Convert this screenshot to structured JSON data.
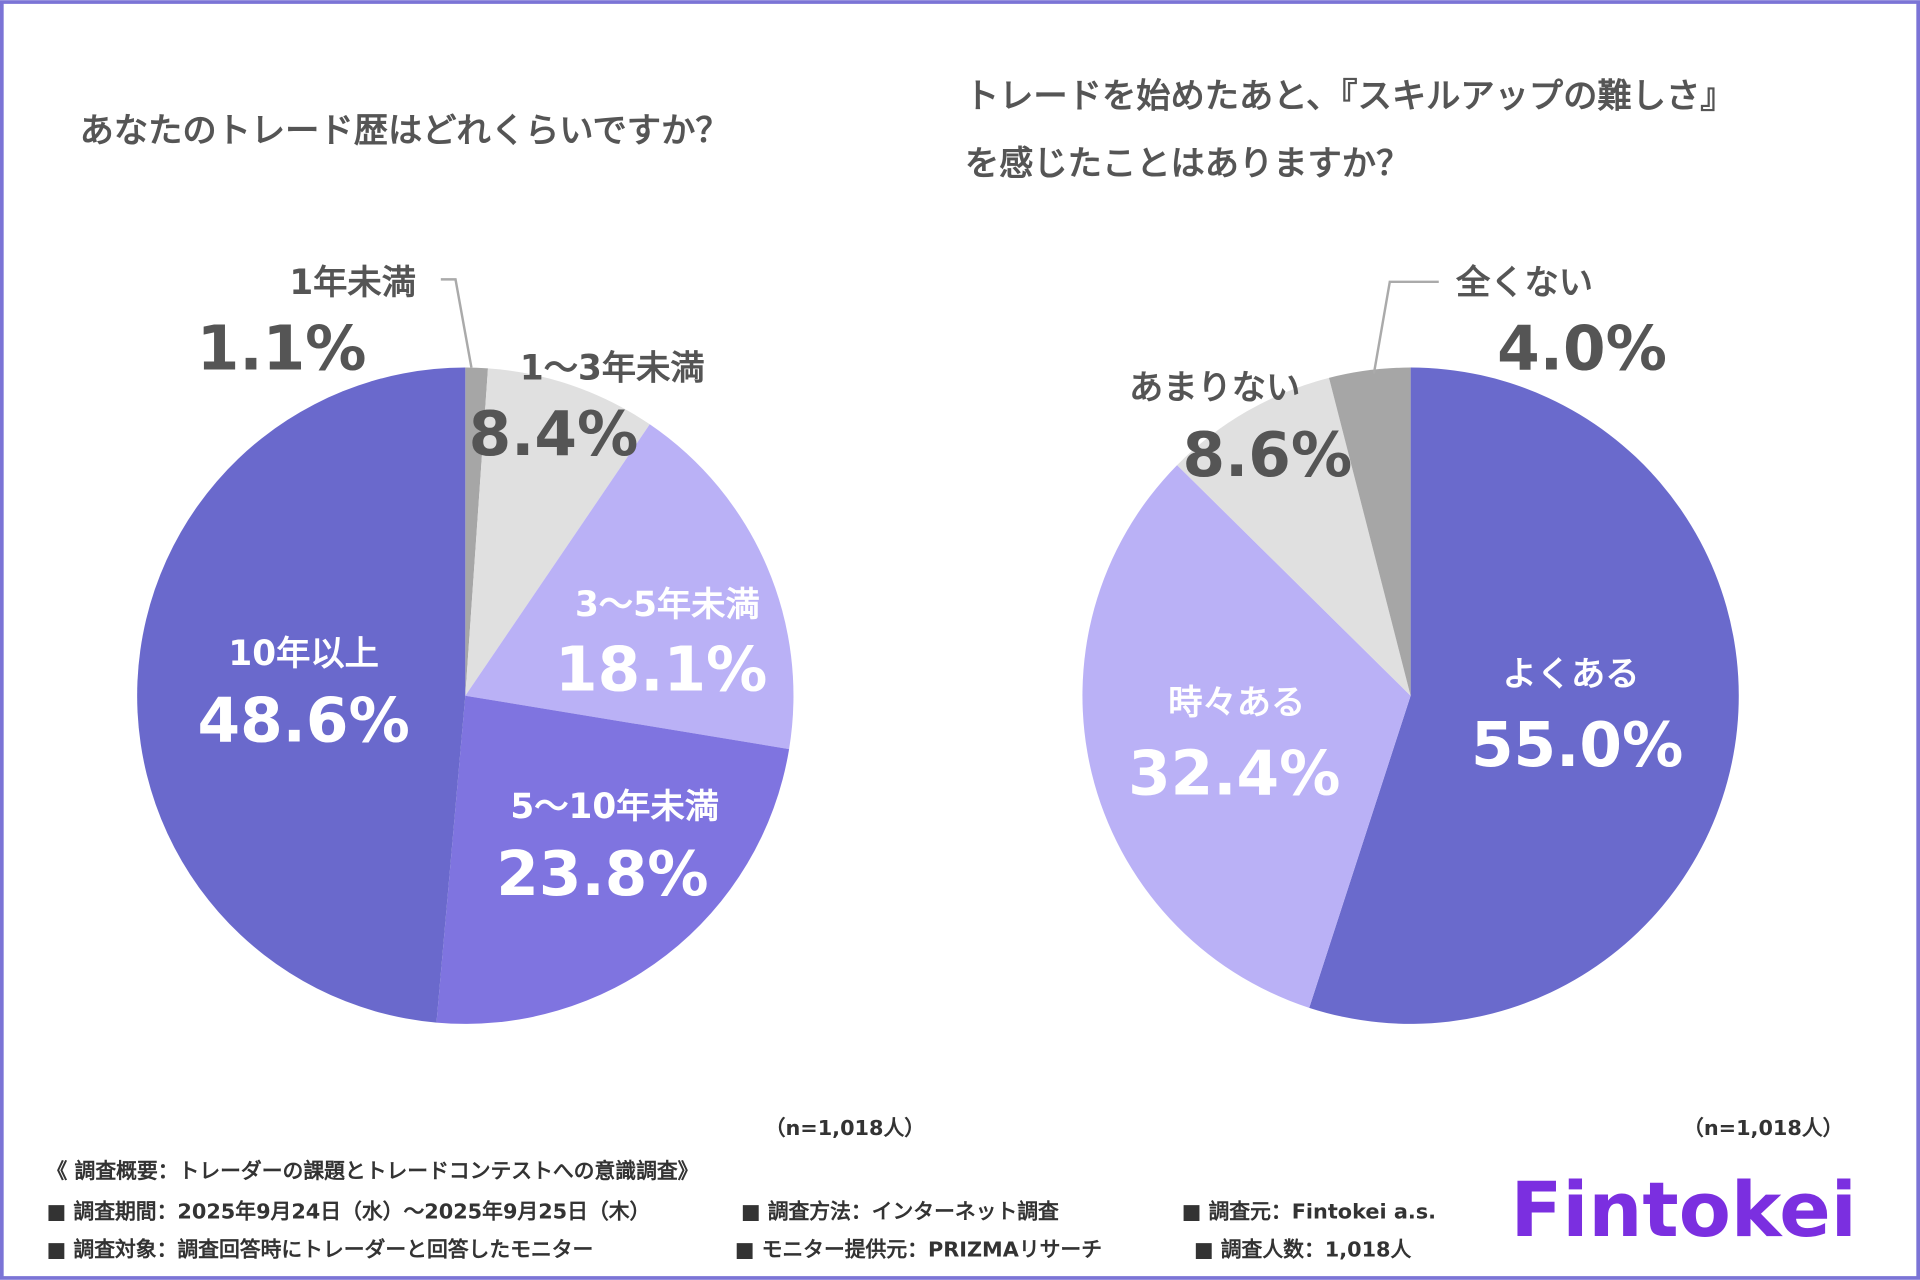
{
  "chart_data": [
    {
      "type": "pie",
      "title": [
        "あなたのトレード歴はどれくらいですか？"
      ],
      "categories": [
        "1年未満",
        "1〜3年未満",
        "3〜5年未満",
        "5〜10年未満",
        "10年以上"
      ],
      "values": [
        1.1,
        8.4,
        18.1,
        23.8,
        48.6
      ],
      "value_labels": [
        "1.1%",
        "8.4%",
        "18.1%",
        "23.8%",
        "48.6%"
      ],
      "colors": [
        "#a6a6a6",
        "#e0e0e0",
        "#bab1f6",
        "#7f74e0",
        "#6a69cc"
      ],
      "note": "（n=1,018人）"
    },
    {
      "type": "pie",
      "title": [
        "トレードを始めたあと、『スキルアップの難しさ』",
        "を感じたことはありますか？"
      ],
      "categories": [
        "よくある",
        "時々ある",
        "あまりない",
        "全くない"
      ],
      "values": [
        55.0,
        32.4,
        8.6,
        4.0
      ],
      "value_labels": [
        "55.0%",
        "32.4%",
        "8.6%",
        "4.0%"
      ],
      "colors": [
        "#6a6acc",
        "#bab1f6",
        "#e0e0e0",
        "#a6a6a6"
      ],
      "note": "（n=1,018人）"
    }
  ],
  "survey": {
    "heading": "《 調査概要：トレーダーの課題とトレードコンテストへの意識調査》",
    "items": [
      "■ 調査期間：2025年9月24日（水）〜2025年9月25日（木）",
      "■ 調査方法：インターネット調査",
      "■ 調査元：Fintokei a.s.",
      "■ 調査対象：調査回答時にトレーダーと回答したモニター",
      "■ モニター提供元：PRIZMAリサーチ",
      "■ 調査人数：1,018人"
    ]
  },
  "logo": "Fintokei"
}
